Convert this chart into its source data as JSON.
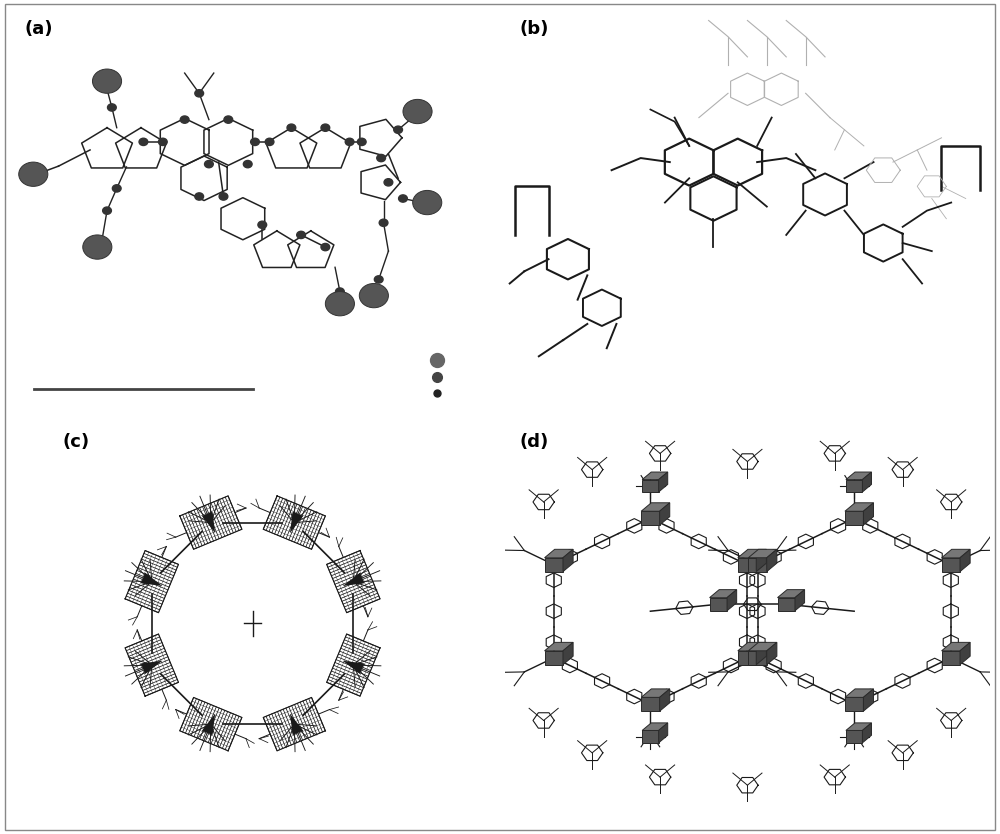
{
  "figure_width": 10.0,
  "figure_height": 8.34,
  "background_color": "#ffffff",
  "panels": [
    {
      "label": "(a)",
      "row": 0,
      "col": 0
    },
    {
      "label": "(b)",
      "row": 0,
      "col": 1
    },
    {
      "label": "(c)",
      "row": 1,
      "col": 0
    },
    {
      "label": "(d)",
      "row": 1,
      "col": 1
    }
  ],
  "label_fontsize": 13,
  "label_fontweight": "bold",
  "border_color": "#888888",
  "border_linewidth": 1.0
}
